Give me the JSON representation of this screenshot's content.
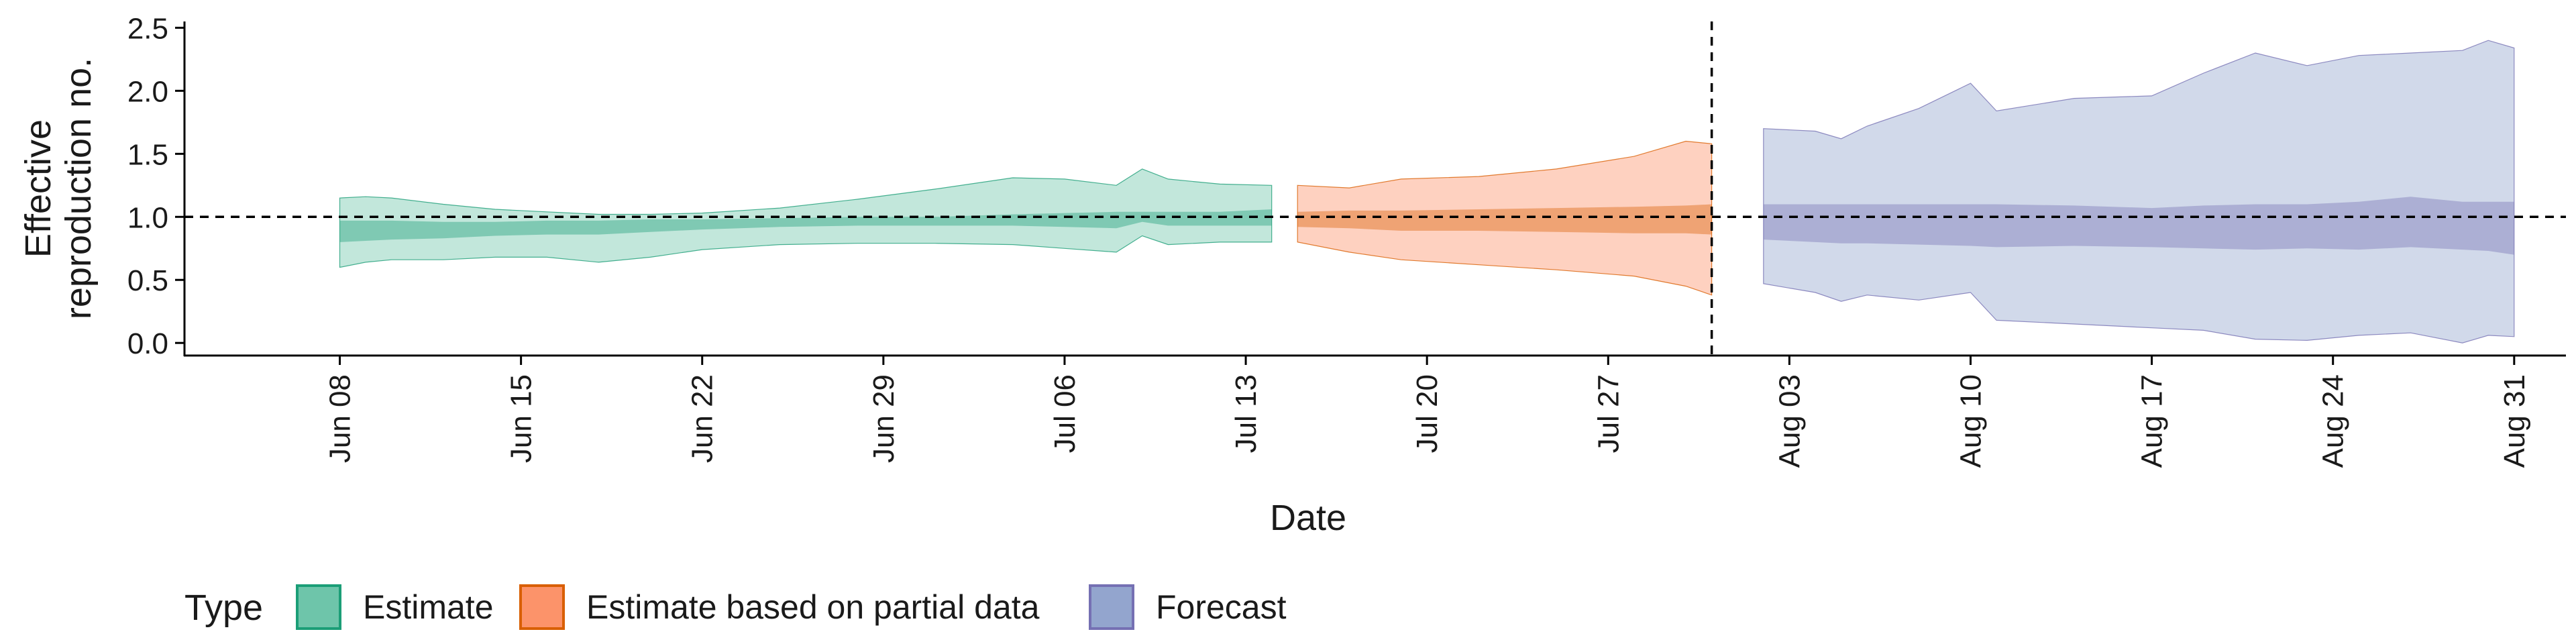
{
  "chart_data": {
    "type": "area",
    "xlabel": "Date",
    "ylabel": "Effective\nreproduction no.",
    "ylim": [
      -0.1,
      2.55
    ],
    "xlim": [
      "2021-06-02",
      "2021-09-02"
    ],
    "y_ticks": [
      0.0,
      0.5,
      1.0,
      1.5,
      2.0,
      2.5
    ],
    "y_tick_labels": [
      "0.0",
      "0.5",
      "1.0",
      "1.5",
      "2.0",
      "2.5"
    ],
    "x_ticks": [
      "2021-06-08",
      "2021-06-15",
      "2021-06-22",
      "2021-06-29",
      "2021-07-06",
      "2021-07-13",
      "2021-07-20",
      "2021-07-27",
      "2021-08-03",
      "2021-08-10",
      "2021-08-17",
      "2021-08-24",
      "2021-08-31"
    ],
    "x_tick_labels": [
      "Jun 08",
      "Jun 15",
      "Jun 22",
      "Jun 29",
      "Jul 06",
      "Jul 13",
      "Jul 20",
      "Jul 27",
      "Aug 03",
      "Aug 10",
      "Aug 17",
      "Aug 24",
      "Aug 31"
    ],
    "hline": {
      "y": 1.0,
      "style": "dashed"
    },
    "vline": {
      "x": "2021-07-31",
      "style": "dashed"
    },
    "grid": false,
    "legend": {
      "title": "Type",
      "position": "bottom-left",
      "entries": [
        "Estimate",
        "Estimate based on partial data",
        "Forecast"
      ]
    },
    "series": [
      {
        "name": "Estimate",
        "color_fill": "#66c2a5",
        "color_line": "#1b9e77",
        "points": [
          {
            "x": "2021-06-08",
            "lo90": 0.6,
            "lo50": 0.8,
            "hi50": 0.97,
            "hi90": 1.15
          },
          {
            "x": "2021-06-09",
            "lo90": 0.64,
            "lo50": 0.81,
            "hi50": 0.97,
            "hi90": 1.16
          },
          {
            "x": "2021-06-10",
            "lo90": 0.66,
            "lo50": 0.82,
            "hi50": 0.97,
            "hi90": 1.15
          },
          {
            "x": "2021-06-12",
            "lo90": 0.66,
            "lo50": 0.83,
            "hi50": 0.96,
            "hi90": 1.1
          },
          {
            "x": "2021-06-14",
            "lo90": 0.68,
            "lo50": 0.85,
            "hi50": 0.96,
            "hi90": 1.06
          },
          {
            "x": "2021-06-16",
            "lo90": 0.68,
            "lo50": 0.86,
            "hi50": 0.97,
            "hi90": 1.04
          },
          {
            "x": "2021-06-18",
            "lo90": 0.64,
            "lo50": 0.86,
            "hi50": 0.97,
            "hi90": 1.02
          },
          {
            "x": "2021-06-20",
            "lo90": 0.68,
            "lo50": 0.88,
            "hi50": 0.98,
            "hi90": 1.02
          },
          {
            "x": "2021-06-22",
            "lo90": 0.74,
            "lo50": 0.9,
            "hi50": 0.98,
            "hi90": 1.03
          },
          {
            "x": "2021-06-25",
            "lo90": 0.78,
            "lo50": 0.92,
            "hi50": 0.99,
            "hi90": 1.07
          },
          {
            "x": "2021-06-28",
            "lo90": 0.79,
            "lo50": 0.93,
            "hi50": 1.0,
            "hi90": 1.14
          },
          {
            "x": "2021-07-01",
            "lo90": 0.79,
            "lo50": 0.93,
            "hi50": 1.0,
            "hi90": 1.22
          },
          {
            "x": "2021-07-04",
            "lo90": 0.78,
            "lo50": 0.93,
            "hi50": 1.02,
            "hi90": 1.31
          },
          {
            "x": "2021-07-06",
            "lo90": 0.75,
            "lo50": 0.92,
            "hi50": 1.03,
            "hi90": 1.3
          },
          {
            "x": "2021-07-08",
            "lo90": 0.72,
            "lo50": 0.91,
            "hi50": 1.04,
            "hi90": 1.25
          },
          {
            "x": "2021-07-09",
            "lo90": 0.85,
            "lo50": 0.96,
            "hi50": 1.04,
            "hi90": 1.38
          },
          {
            "x": "2021-07-10",
            "lo90": 0.78,
            "lo50": 0.93,
            "hi50": 1.04,
            "hi90": 1.3
          },
          {
            "x": "2021-07-12",
            "lo90": 0.8,
            "lo50": 0.93,
            "hi50": 1.04,
            "hi90": 1.26
          },
          {
            "x": "2021-07-14",
            "lo90": 0.8,
            "lo50": 0.93,
            "hi50": 1.06,
            "hi90": 1.25
          }
        ]
      },
      {
        "name": "Estimate based on partial data",
        "color_fill": "#fc8d62",
        "color_line": "#d95f02",
        "points": [
          {
            "x": "2021-07-15",
            "lo90": 0.8,
            "lo50": 0.92,
            "hi50": 1.04,
            "hi90": 1.25
          },
          {
            "x": "2021-07-17",
            "lo90": 0.72,
            "lo50": 0.91,
            "hi50": 1.05,
            "hi90": 1.23
          },
          {
            "x": "2021-07-19",
            "lo90": 0.66,
            "lo50": 0.89,
            "hi50": 1.05,
            "hi90": 1.3
          },
          {
            "x": "2021-07-22",
            "lo90": 0.62,
            "lo50": 0.89,
            "hi50": 1.06,
            "hi90": 1.32
          },
          {
            "x": "2021-07-25",
            "lo90": 0.58,
            "lo50": 0.88,
            "hi50": 1.07,
            "hi90": 1.38
          },
          {
            "x": "2021-07-28",
            "lo90": 0.53,
            "lo50": 0.87,
            "hi50": 1.08,
            "hi90": 1.48
          },
          {
            "x": "2021-07-30",
            "lo90": 0.45,
            "lo50": 0.87,
            "hi50": 1.09,
            "hi90": 1.6
          },
          {
            "x": "2021-07-31",
            "lo90": 0.38,
            "lo50": 0.86,
            "hi50": 1.1,
            "hi90": 1.58
          }
        ]
      },
      {
        "name": "Forecast",
        "color_fill": "#8da0cb",
        "color_line": "#7570b3",
        "points": [
          {
            "x": "2021-08-02",
            "lo90": 0.47,
            "lo50": 0.82,
            "hi50": 1.1,
            "hi90": 1.7
          },
          {
            "x": "2021-08-04",
            "lo90": 0.4,
            "lo50": 0.8,
            "hi50": 1.1,
            "hi90": 1.68
          },
          {
            "x": "2021-08-05",
            "lo90": 0.33,
            "lo50": 0.79,
            "hi50": 1.1,
            "hi90": 1.62
          },
          {
            "x": "2021-08-06",
            "lo90": 0.38,
            "lo50": 0.79,
            "hi50": 1.1,
            "hi90": 1.72
          },
          {
            "x": "2021-08-08",
            "lo90": 0.34,
            "lo50": 0.78,
            "hi50": 1.1,
            "hi90": 1.86
          },
          {
            "x": "2021-08-10",
            "lo90": 0.4,
            "lo50": 0.77,
            "hi50": 1.1,
            "hi90": 2.06
          },
          {
            "x": "2021-08-11",
            "lo90": 0.18,
            "lo50": 0.76,
            "hi50": 1.1,
            "hi90": 1.84
          },
          {
            "x": "2021-08-14",
            "lo90": 0.15,
            "lo50": 0.77,
            "hi50": 1.09,
            "hi90": 1.94
          },
          {
            "x": "2021-08-17",
            "lo90": 0.12,
            "lo50": 0.76,
            "hi50": 1.07,
            "hi90": 1.96
          },
          {
            "x": "2021-08-19",
            "lo90": 0.1,
            "lo50": 0.75,
            "hi50": 1.09,
            "hi90": 2.14
          },
          {
            "x": "2021-08-21",
            "lo90": 0.03,
            "lo50": 0.74,
            "hi50": 1.1,
            "hi90": 2.3
          },
          {
            "x": "2021-08-23",
            "lo90": 0.02,
            "lo50": 0.75,
            "hi50": 1.1,
            "hi90": 2.2
          },
          {
            "x": "2021-08-25",
            "lo90": 0.06,
            "lo50": 0.74,
            "hi50": 1.12,
            "hi90": 2.28
          },
          {
            "x": "2021-08-27",
            "lo90": 0.08,
            "lo50": 0.76,
            "hi50": 1.16,
            "hi90": 2.3
          },
          {
            "x": "2021-08-29",
            "lo90": 0.0,
            "lo50": 0.74,
            "hi50": 1.12,
            "hi90": 2.32
          },
          {
            "x": "2021-08-30",
            "lo90": 0.06,
            "lo50": 0.73,
            "hi50": 1.12,
            "hi90": 2.4
          },
          {
            "x": "2021-08-31",
            "lo90": 0.05,
            "lo50": 0.7,
            "hi50": 1.12,
            "hi90": 2.34
          }
        ]
      }
    ]
  }
}
